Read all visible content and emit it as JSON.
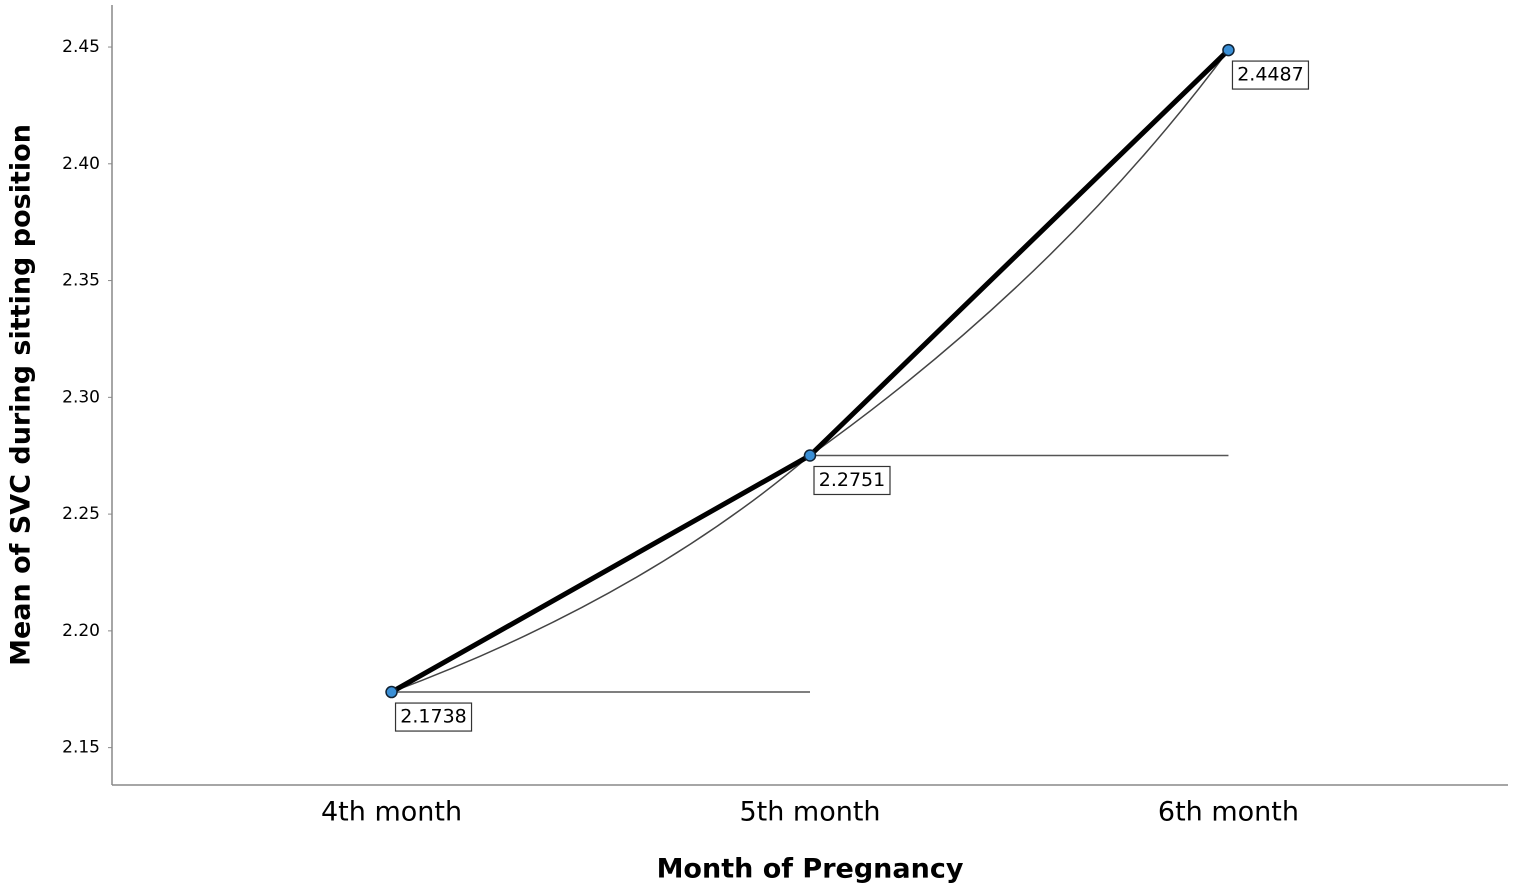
{
  "chart_data": {
    "type": "line",
    "x_label": "Month of Pregnancy",
    "y_label": "Mean of SVC during sitting position",
    "categories": [
      "4th month",
      "5th month",
      "6th month"
    ],
    "values": [
      2.1738,
      2.2751,
      2.4487
    ],
    "color": "#000000",
    "marker_color": "#3a8fd6",
    "ylim": [
      2.134,
      2.468
    ],
    "yticks": [
      2.15,
      {
        "value": 2.2,
        "label": "2.20"
      },
      2.25,
      {
        "value": 2.3,
        "label": "2.30"
      },
      2.35,
      {
        "value": 2.4,
        "label": "2.40"
      },
      2.45
    ]
  }
}
